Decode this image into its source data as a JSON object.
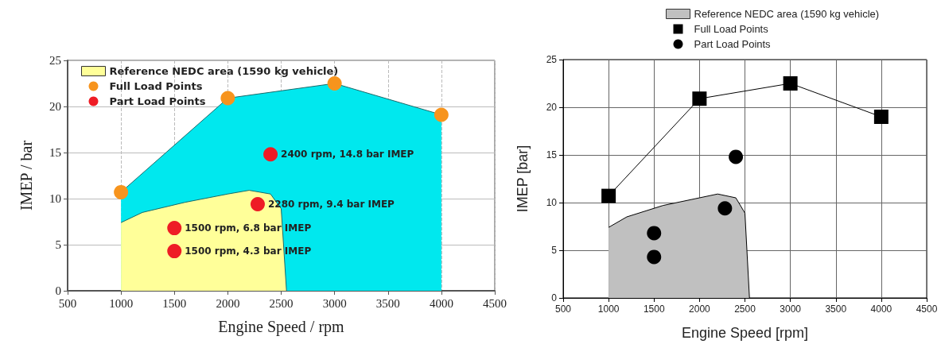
{
  "chart_data": [
    {
      "type": "area",
      "xlabel": "Engine Speed / rpm",
      "ylabel": "IMEP / bar",
      "xlim": [
        500,
        4500
      ],
      "xticks": [
        500,
        1000,
        1500,
        2000,
        2500,
        3000,
        3500,
        4000,
        4500
      ],
      "ylim": [
        0,
        25
      ],
      "yticks": [
        0,
        5,
        10,
        15,
        20,
        25
      ],
      "grid": true,
      "legend": "top left",
      "series": [
        {
          "color": "#00e8ee",
          "x": [
            1000,
            2000,
            3000,
            4000
          ],
          "values": [
            10.7,
            20.9,
            22.5,
            19.1
          ]
        },
        {
          "name": "Reference NEDC area (1590 kg vehicle)",
          "color": "#ffff99",
          "x": [
            1000,
            1200,
            1600,
            2000,
            2200,
            2400,
            2500,
            2550
          ],
          "values": [
            7.4,
            8.5,
            9.6,
            10.5,
            10.9,
            10.5,
            8.9,
            0
          ]
        },
        {
          "type": "scatter",
          "name": "Full Load Points",
          "color": "#f7941d",
          "marker": "circle",
          "x": [
            1000,
            2000,
            3000,
            4000
          ],
          "values": [
            10.7,
            20.9,
            22.5,
            19.1
          ]
        },
        {
          "type": "scatter",
          "name": "Part Load Points",
          "color": "#ee1c25",
          "marker": "circle",
          "x": [
            1500,
            1500,
            2280,
            2400
          ],
          "values": [
            4.3,
            6.8,
            9.4,
            14.8
          ]
        }
      ],
      "annotations": [
        {
          "text": "2400 rpm, 14.8 bar IMEP",
          "x": 2400,
          "y": 14.8
        },
        {
          "text": "2280 rpm, 9.4 bar IMEP",
          "x": 2280,
          "y": 9.4
        },
        {
          "text": "1500 rpm, 6.8 bar IMEP",
          "x": 1500,
          "y": 6.8
        },
        {
          "text": "1500 rpm, 4.3 bar IMEP",
          "x": 1500,
          "y": 4.3
        }
      ]
    },
    {
      "type": "line",
      "xlabel": "Engine Speed [rpm]",
      "ylabel": "IMEP [bar]",
      "xlim": [
        500,
        4500
      ],
      "xticks": [
        500,
        1000,
        1500,
        2000,
        2500,
        3000,
        3500,
        4000,
        4500
      ],
      "ylim": [
        0,
        25
      ],
      "yticks": [
        0,
        5,
        10,
        15,
        20,
        25
      ],
      "grid": true,
      "legend": "top",
      "series": [
        {
          "type": "area",
          "name": "Reference NEDC area (1590 kg vehicle)",
          "color": "#c0c0c0",
          "x": [
            1000,
            1200,
            1600,
            2000,
            2200,
            2400,
            2500,
            2550
          ],
          "values": [
            7.4,
            8.5,
            9.7,
            10.5,
            10.9,
            10.5,
            8.9,
            0
          ]
        },
        {
          "name": "Full Load Points",
          "color": "#000000",
          "marker": "square",
          "x": [
            1000,
            2000,
            3000,
            4000
          ],
          "values": [
            10.7,
            20.9,
            22.5,
            19.0
          ]
        },
        {
          "type": "scatter",
          "name": "Part Load Points",
          "color": "#000000",
          "marker": "circle",
          "x": [
            1500,
            1500,
            2280,
            2400
          ],
          "values": [
            4.3,
            6.8,
            9.4,
            14.8
          ]
        }
      ]
    }
  ]
}
